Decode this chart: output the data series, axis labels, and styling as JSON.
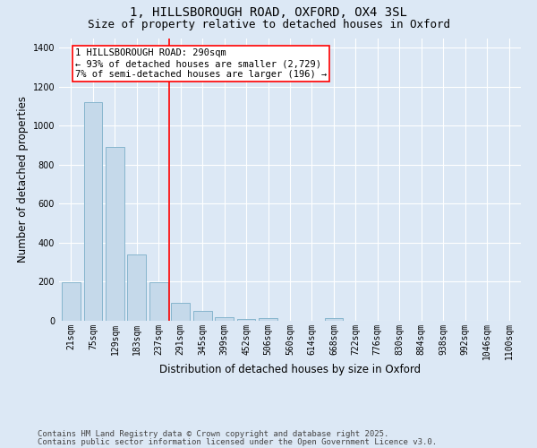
{
  "title1": "1, HILLSBOROUGH ROAD, OXFORD, OX4 3SL",
  "title2": "Size of property relative to detached houses in Oxford",
  "xlabel": "Distribution of detached houses by size in Oxford",
  "ylabel": "Number of detached properties",
  "categories": [
    "21sqm",
    "75sqm",
    "129sqm",
    "183sqm",
    "237sqm",
    "291sqm",
    "345sqm",
    "399sqm",
    "452sqm",
    "506sqm",
    "560sqm",
    "614sqm",
    "668sqm",
    "722sqm",
    "776sqm",
    "830sqm",
    "884sqm",
    "938sqm",
    "992sqm",
    "1046sqm",
    "1100sqm"
  ],
  "values": [
    197,
    1120,
    893,
    340,
    197,
    88,
    50,
    17,
    9,
    10,
    0,
    0,
    10,
    0,
    0,
    0,
    0,
    0,
    0,
    0,
    0
  ],
  "bar_color": "#c5d9ea",
  "bar_edge_color": "#7aaec8",
  "vline_x_index": 5,
  "vline_color": "red",
  "annotation_title": "1 HILLSBOROUGH ROAD: 290sqm",
  "annotation_line1": "← 93% of detached houses are smaller (2,729)",
  "annotation_line2": "7% of semi-detached houses are larger (196) →",
  "annotation_box_color": "red",
  "ylim": [
    0,
    1450
  ],
  "yticks": [
    0,
    200,
    400,
    600,
    800,
    1000,
    1200,
    1400
  ],
  "footnote1": "Contains HM Land Registry data © Crown copyright and database right 2025.",
  "footnote2": "Contains public sector information licensed under the Open Government Licence v3.0.",
  "bg_color": "#dce8f5",
  "plot_bg_color": "#dce8f5",
  "title_fontsize": 10,
  "subtitle_fontsize": 9,
  "axis_label_fontsize": 8.5,
  "tick_fontsize": 7,
  "footnote_fontsize": 6.5,
  "annotation_fontsize": 7.5
}
